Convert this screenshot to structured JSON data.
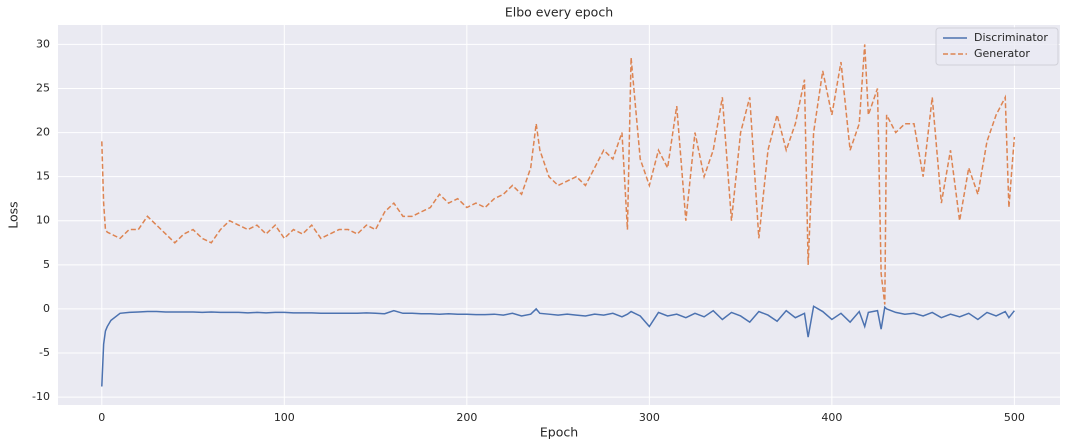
{
  "chart_data": {
    "type": "line",
    "title": "Elbo every epoch",
    "xlabel": "Epoch",
    "ylabel": "Loss",
    "x": [
      0,
      1,
      2,
      3,
      5,
      10,
      15,
      20,
      25,
      30,
      35,
      40,
      45,
      50,
      55,
      60,
      65,
      70,
      75,
      80,
      85,
      90,
      95,
      100,
      105,
      110,
      115,
      120,
      125,
      130,
      135,
      140,
      145,
      150,
      155,
      160,
      165,
      170,
      175,
      180,
      185,
      190,
      195,
      200,
      205,
      210,
      215,
      220,
      225,
      230,
      235,
      238,
      240,
      245,
      250,
      255,
      260,
      265,
      270,
      275,
      280,
      285,
      288,
      290,
      295,
      300,
      305,
      310,
      315,
      320,
      325,
      330,
      335,
      340,
      345,
      350,
      355,
      360,
      365,
      370,
      375,
      380,
      385,
      387,
      390,
      395,
      400,
      405,
      410,
      415,
      418,
      420,
      425,
      427,
      429,
      430,
      435,
      440,
      445,
      450,
      455,
      460,
      465,
      470,
      475,
      480,
      485,
      490,
      495,
      497,
      500
    ],
    "series": [
      {
        "name": "Discriminator",
        "color": "#4c72b0",
        "linestyle": "solid",
        "values": [
          -8.8,
          -4,
          -2.5,
          -2,
          -1.3,
          -0.5,
          -0.4,
          -0.35,
          -0.3,
          -0.3,
          -0.35,
          -0.35,
          -0.35,
          -0.35,
          -0.4,
          -0.35,
          -0.4,
          -0.4,
          -0.4,
          -0.45,
          -0.4,
          -0.45,
          -0.4,
          -0.4,
          -0.45,
          -0.45,
          -0.45,
          -0.5,
          -0.5,
          -0.5,
          -0.5,
          -0.5,
          -0.45,
          -0.5,
          -0.55,
          -0.2,
          -0.5,
          -0.5,
          -0.55,
          -0.55,
          -0.6,
          -0.55,
          -0.6,
          -0.6,
          -0.65,
          -0.65,
          -0.6,
          -0.7,
          -0.5,
          -0.8,
          -0.6,
          0,
          -0.5,
          -0.6,
          -0.7,
          -0.6,
          -0.7,
          -0.8,
          -0.6,
          -0.7,
          -0.5,
          -0.9,
          -0.6,
          -0.3,
          -0.8,
          -2,
          -0.4,
          -0.8,
          -0.6,
          -1,
          -0.5,
          -0.9,
          -0.2,
          -1.2,
          -0.4,
          -0.8,
          -1.5,
          -0.3,
          -0.7,
          -1.4,
          -0.2,
          -1,
          -0.5,
          -3.2,
          0.3,
          -0.3,
          -1.2,
          -0.5,
          -1.5,
          -0.3,
          -2,
          -0.4,
          -0.2,
          -2.3,
          0.2,
          0,
          -0.4,
          -0.6,
          -0.5,
          -0.8,
          -0.4,
          -1,
          -0.6,
          -0.9,
          -0.5,
          -1.2,
          -0.4,
          -0.8,
          -0.3,
          -1,
          -0.2
        ]
      },
      {
        "name": "Generator",
        "color": "#dd8452",
        "linestyle": "dashed",
        "values": [
          19,
          12,
          9,
          8.7,
          8.5,
          8,
          9,
          9,
          10.5,
          9.5,
          8.5,
          7.5,
          8.5,
          9,
          8,
          7.5,
          9,
          10,
          9.5,
          9,
          9.5,
          8.5,
          9.5,
          8,
          9,
          8.5,
          9.5,
          8,
          8.5,
          9,
          9,
          8.5,
          9.5,
          9,
          11,
          12,
          10.5,
          10.5,
          11,
          11.5,
          13,
          12,
          12.5,
          11.5,
          12,
          11.5,
          12.5,
          13,
          14,
          13,
          16,
          21,
          18,
          15,
          14,
          14.5,
          15,
          14,
          16,
          18,
          17,
          20,
          9,
          28.5,
          17,
          14,
          18,
          16,
          23,
          10,
          20,
          15,
          18,
          24,
          10,
          20,
          24,
          8,
          18,
          22,
          18,
          21,
          26,
          5,
          20,
          27,
          22,
          28,
          18,
          21,
          30,
          22,
          25,
          4,
          0.5,
          22,
          20,
          21,
          21,
          15,
          24,
          12,
          18,
          10,
          16,
          13,
          19,
          22,
          24,
          11.5,
          19.5
        ]
      }
    ],
    "xlim": [
      -24,
      525
    ],
    "ylim": [
      -10.9,
      32.2
    ],
    "xticks": [
      0,
      100,
      200,
      300,
      400,
      500
    ],
    "yticks": [
      -10,
      -5,
      0,
      5,
      10,
      15,
      20,
      25,
      30
    ],
    "grid": true,
    "legend": "upper right",
    "background": "#eaeaf2"
  }
}
